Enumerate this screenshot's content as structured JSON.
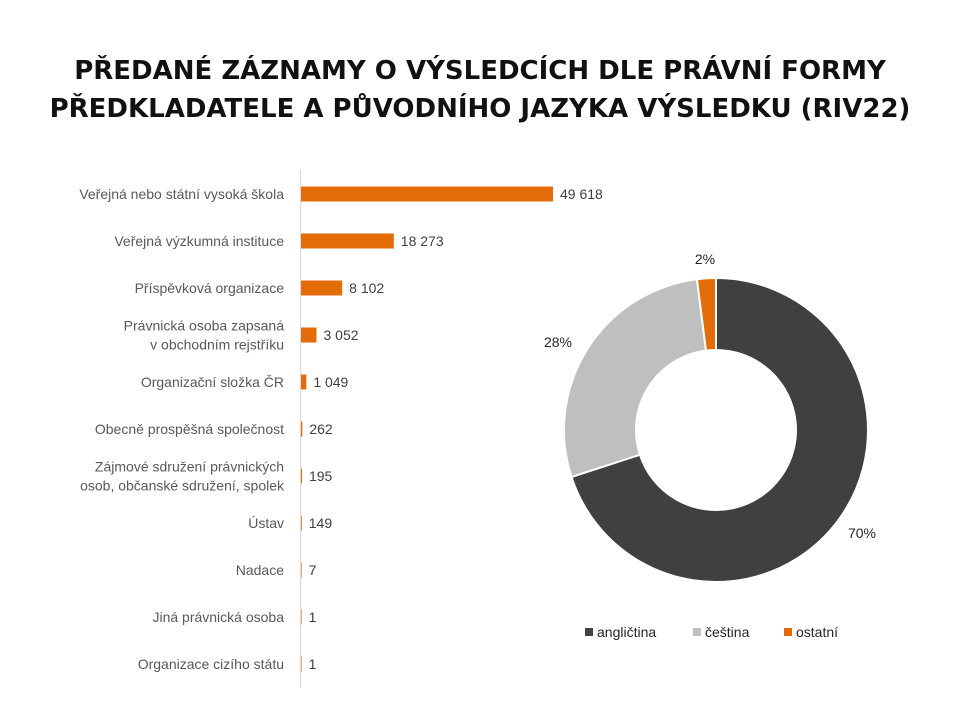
{
  "title_line1": "PŘEDANÉ ZÁZNAMY O VÝSLEDCÍCH DLE PRÁVNÍ FORMY",
  "title_line2": "PŘEDKLADATELE A PŮVODNÍHO JAZYKA VÝSLEDKU (RIV22)",
  "chart_data": [
    {
      "type": "bar",
      "orientation": "horizontal",
      "color": "#E36C09",
      "categories": [
        [
          "Veřejná nebo státní vysoká škola"
        ],
        [
          "Veřejná výzkumná instituce"
        ],
        [
          "Příspěvková organizace"
        ],
        [
          "Právnická osoba zapsaná",
          "v obchodním rejstříku"
        ],
        [
          "Organizační složka ČR"
        ],
        [
          "Obecně prospěšná společnost"
        ],
        [
          "Zájmové sdružení právnických",
          "osob, občanské sdružení, spolek"
        ],
        [
          "Ústav"
        ],
        [
          "Nadace"
        ],
        [
          "Jiná právnická osoba"
        ],
        [
          "Organizace cizího státu"
        ]
      ],
      "values": [
        49618,
        18273,
        8102,
        3052,
        1049,
        262,
        195,
        149,
        7,
        1,
        1
      ],
      "value_labels": [
        "49 618",
        "18 273",
        "8 102",
        "3 052",
        "1 049",
        "262",
        "195",
        "149",
        "7",
        "1",
        "1"
      ]
    },
    {
      "type": "pie",
      "style": "donut",
      "slices": [
        {
          "name": "angličtina",
          "value": 70,
          "label": "70%",
          "color": "#404040"
        },
        {
          "name": "čeština",
          "value": 28,
          "label": "28%",
          "color": "#BFBFBF"
        },
        {
          "name": "ostatní",
          "value": 2,
          "label": "2%",
          "color": "#E36C09"
        }
      ],
      "legend": "bottom"
    }
  ]
}
